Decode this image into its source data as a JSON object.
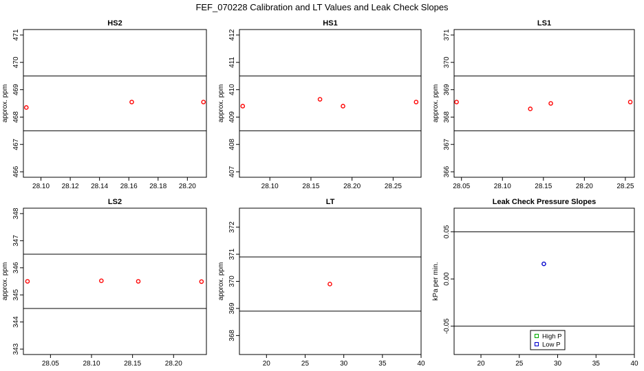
{
  "figure": {
    "title": "FEF_070228  Calibration and LT Values and Leak Check Slopes"
  },
  "chart_data": [
    {
      "type": "scatter",
      "title": "HS2",
      "xlabel": "",
      "ylabel": "approx. ppm",
      "xlim": [
        28.088,
        28.213
      ],
      "ylim": [
        465.8,
        471.2
      ],
      "xticks": [
        28.1,
        28.12,
        28.14,
        28.16,
        28.18,
        28.2
      ],
      "xtick_labels": [
        "28.10",
        "28.12",
        "28.14",
        "28.16",
        "28.18",
        "28.20"
      ],
      "yticks": [
        466,
        467,
        468,
        469,
        470,
        471
      ],
      "ytick_labels": [
        "466",
        "467",
        "468",
        "469",
        "470",
        "471"
      ],
      "hlines": [
        469.5,
        467.5
      ],
      "series": [
        {
          "marker": "circle",
          "color": "#ff0000",
          "x": [
            28.09,
            28.162,
            28.211
          ],
          "y": [
            468.35,
            468.55,
            468.55
          ]
        }
      ]
    },
    {
      "type": "scatter",
      "title": "HS1",
      "xlabel": "",
      "ylabel": "approx. ppm",
      "xlim": [
        28.063,
        28.284
      ],
      "ylim": [
        406.8,
        412.2
      ],
      "xticks": [
        28.1,
        28.15,
        28.2,
        28.25
      ],
      "xtick_labels": [
        "28.10",
        "28.15",
        "28.20",
        "28.25"
      ],
      "yticks": [
        407,
        408,
        409,
        410,
        411,
        412
      ],
      "ytick_labels": [
        "407",
        "408",
        "409",
        "410",
        "411",
        "412"
      ],
      "hlines": [
        410.5,
        408.5
      ],
      "series": [
        {
          "marker": "circle",
          "color": "#ff0000",
          "x": [
            28.067,
            28.161,
            28.189,
            28.278
          ],
          "y": [
            409.4,
            409.65,
            409.4,
            409.55
          ]
        }
      ]
    },
    {
      "type": "scatter",
      "title": "LS1",
      "xlabel": "",
      "ylabel": "approx. ppm",
      "xlim": [
        28.041,
        28.261
      ],
      "ylim": [
        365.8,
        371.2
      ],
      "xticks": [
        28.05,
        28.1,
        28.15,
        28.2,
        28.25
      ],
      "xtick_labels": [
        "28.05",
        "28.10",
        "28.15",
        "28.20",
        "28.25"
      ],
      "yticks": [
        366,
        367,
        368,
        369,
        370,
        371
      ],
      "ytick_labels": [
        "366",
        "367",
        "368",
        "369",
        "370",
        "371"
      ],
      "hlines": [
        369.5,
        367.5
      ],
      "series": [
        {
          "marker": "circle",
          "color": "#ff0000",
          "x": [
            28.044,
            28.134,
            28.159,
            28.256
          ],
          "y": [
            368.55,
            368.3,
            368.5,
            368.55
          ]
        }
      ]
    },
    {
      "type": "scatter",
      "title": "LS2",
      "xlabel": "",
      "ylabel": "approx. ppm",
      "xlim": [
        28.017,
        28.24
      ],
      "ylim": [
        342.8,
        348.2
      ],
      "xticks": [
        28.05,
        28.1,
        28.15,
        28.2
      ],
      "xtick_labels": [
        "28.05",
        "28.10",
        "28.15",
        "28.20"
      ],
      "yticks": [
        343,
        344,
        345,
        346,
        347,
        348
      ],
      "ytick_labels": [
        "343",
        "344",
        "345",
        "346",
        "347",
        "348"
      ],
      "hlines": [
        346.5,
        344.5
      ],
      "series": [
        {
          "marker": "circle",
          "color": "#ff0000",
          "x": [
            28.022,
            28.112,
            28.157,
            28.234
          ],
          "y": [
            345.5,
            345.52,
            345.5,
            345.49
          ]
        }
      ]
    },
    {
      "type": "scatter",
      "title": "LT",
      "xlabel": "",
      "ylabel": "approx. ppm",
      "xlim": [
        16.5,
        40.0
      ],
      "ylim": [
        367.3,
        372.7
      ],
      "xticks": [
        20,
        25,
        30,
        35,
        40
      ],
      "xtick_labels": [
        "20",
        "25",
        "30",
        "35",
        "40"
      ],
      "yticks": [
        368,
        369,
        370,
        371,
        372
      ],
      "ytick_labels": [
        "368",
        "369",
        "370",
        "371",
        "372"
      ],
      "hlines": [
        370.9,
        368.9
      ],
      "series": [
        {
          "marker": "circle",
          "color": "#ff0000",
          "x": [
            28.2
          ],
          "y": [
            369.9
          ]
        }
      ]
    },
    {
      "type": "scatter",
      "title": "Leak Check Pressure Slopes",
      "xlabel": "",
      "ylabel": "kPa per min.",
      "xlim": [
        16.5,
        40.0
      ],
      "ylim": [
        -0.08,
        0.075
      ],
      "xticks": [
        20,
        25,
        30,
        35,
        40
      ],
      "xtick_labels": [
        "20",
        "25",
        "30",
        "35",
        "40"
      ],
      "yticks": [
        -0.05,
        0.0,
        0.05
      ],
      "ytick_labels": [
        "-0.05",
        "0.00",
        "0.05"
      ],
      "hlines": [
        0.05,
        -0.05
      ],
      "series": [
        {
          "name": "High P",
          "marker": "square",
          "color": "#00aa00",
          "x": [],
          "y": []
        },
        {
          "name": "Low P",
          "marker": "circle",
          "color": "#0000cc",
          "x": [
            28.2
          ],
          "y": [
            0.016
          ]
        }
      ],
      "legend": "bottom-center"
    }
  ]
}
